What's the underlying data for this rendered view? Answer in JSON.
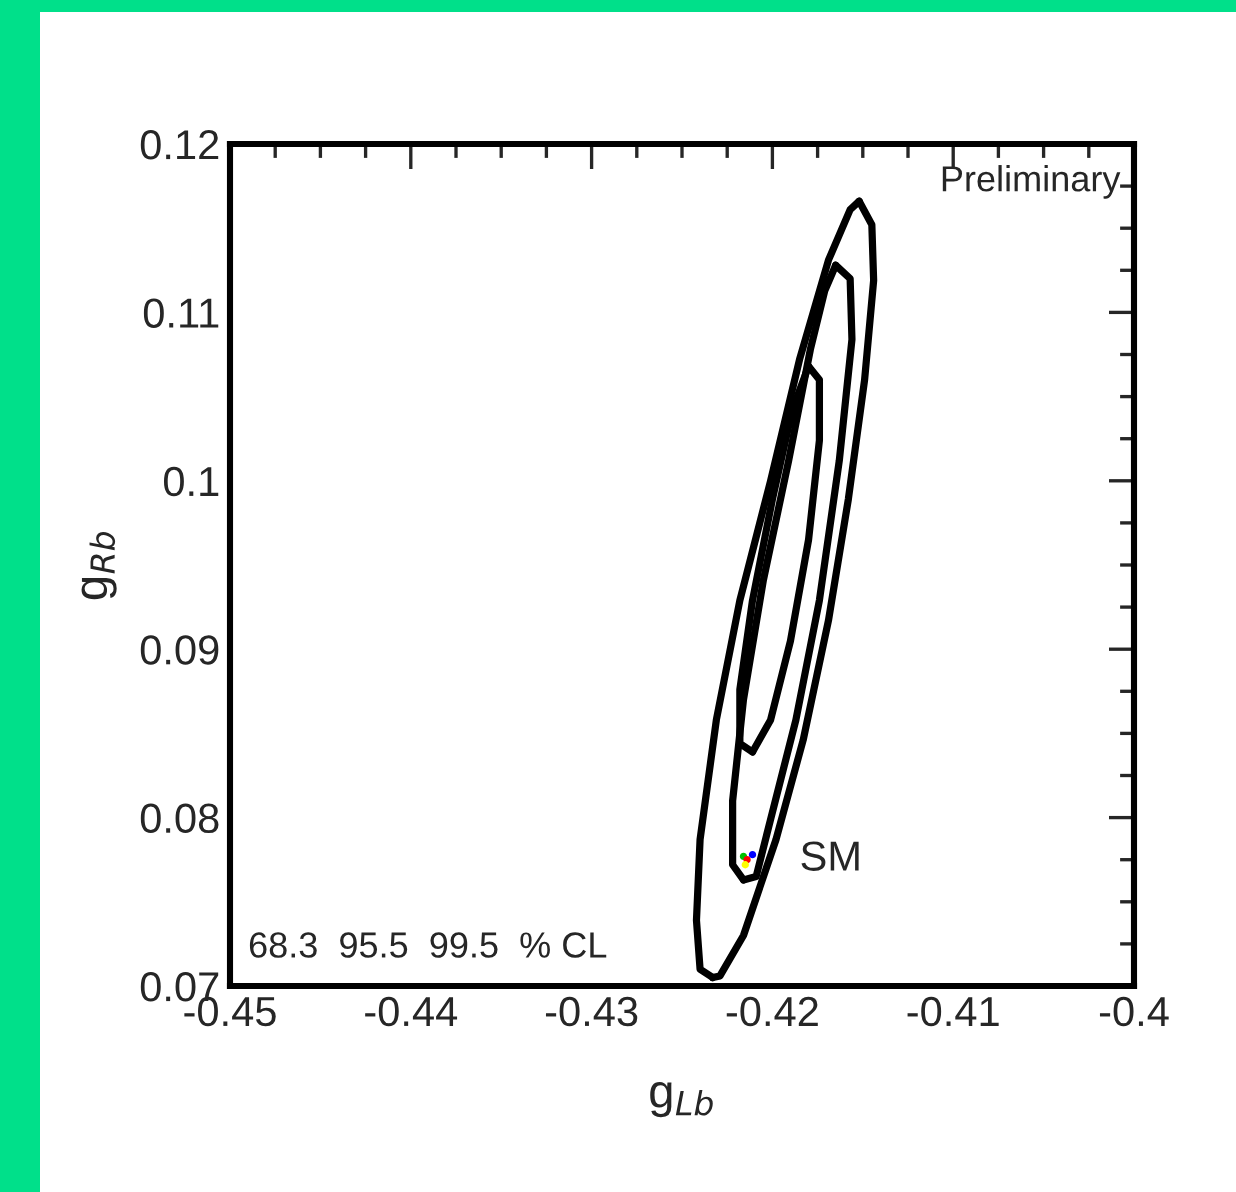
{
  "chart_data": {
    "type": "line",
    "xlabel": "g$_{Lb}$",
    "ylabel": "g$_{Rb}$",
    "xlim": [
      -0.45,
      -0.4
    ],
    "ylim": [
      0.07,
      0.12
    ],
    "xticks": [
      -0.45,
      -0.44,
      -0.43,
      -0.42,
      -0.41,
      {
        "value": -0.4,
        "label": "-0.4"
      }
    ],
    "yticks": [
      0.07,
      0.08,
      0.09,
      {
        "value": 0.1,
        "label": "0.1"
      },
      0.11,
      0.12
    ],
    "marker": "none",
    "line_style": "solid",
    "series": [
      {
        "color": "#000000",
        "x": [
          -0.4152,
          -0.4145,
          -0.4144,
          -0.4149,
          -0.4158,
          -0.4169,
          -0.4183,
          -0.4198,
          -0.4216,
          -0.4229,
          -0.4233
        ],
        "values": [
          0.1166,
          0.1152,
          0.1119,
          0.106,
          0.0989,
          0.0917,
          0.0846,
          0.0787,
          0.073,
          0.0706,
          0.0705
        ]
      },
      {
        "color": "#000000",
        "x": [
          -0.4233,
          -0.424,
          -0.4242,
          -0.424,
          -0.4231,
          -0.4218,
          -0.4201,
          -0.4185,
          -0.4169,
          -0.4157,
          -0.4152
        ],
        "values": [
          0.0705,
          0.071,
          0.0739,
          0.0787,
          0.0858,
          0.0929,
          0.1,
          0.1072,
          0.1131,
          0.1161,
          0.1166
        ]
      },
      {
        "color": "#000000",
        "x": [
          -0.4165,
          -0.4157,
          -0.4156,
          -0.4163,
          -0.4174,
          -0.4187,
          -0.4201,
          -0.4209,
          -0.4216
        ],
        "values": [
          0.1128,
          0.112,
          0.1084,
          0.1012,
          0.0929,
          0.0858,
          0.0799,
          0.0765,
          0.0763
        ]
      },
      {
        "color": "#000000",
        "x": [
          -0.4216,
          -0.4222,
          -0.4222,
          -0.4216,
          -0.4205,
          -0.4191,
          -0.4179,
          -0.4171,
          -0.4165
        ],
        "values": [
          0.0763,
          0.0772,
          0.081,
          0.087,
          0.0941,
          0.1012,
          0.1078,
          0.1113,
          0.1128
        ]
      },
      {
        "color": "#000000",
        "x": [
          -0.418,
          -0.4174,
          -0.4174,
          -0.418,
          -0.419,
          -0.4201,
          -0.4211
        ],
        "values": [
          0.1068,
          0.106,
          0.1024,
          0.0965,
          0.0905,
          0.0858,
          0.0839
        ]
      },
      {
        "color": "#000000",
        "x": [
          -0.4211,
          -0.4218,
          -0.4218,
          -0.4211,
          -0.42,
          -0.4189,
          -0.418
        ],
        "values": [
          0.0839,
          0.0844,
          0.0876,
          0.0929,
          0.0989,
          0.1042,
          0.1068
        ]
      },
      {
        "type": "scatter",
        "marker": "circle",
        "x": [
          -0.4216,
          -0.4214,
          -0.4211,
          -0.4215
        ],
        "values": [
          0.0777,
          0.0775,
          0.0778,
          0.0772
        ],
        "colors": [
          "#00c000",
          "#ff0000",
          "#0000ff",
          "#ffff00"
        ]
      }
    ],
    "annotations": [
      "SM",
      "Preliminary",
      "68.3  95.5  99.5  % CL"
    ]
  }
}
